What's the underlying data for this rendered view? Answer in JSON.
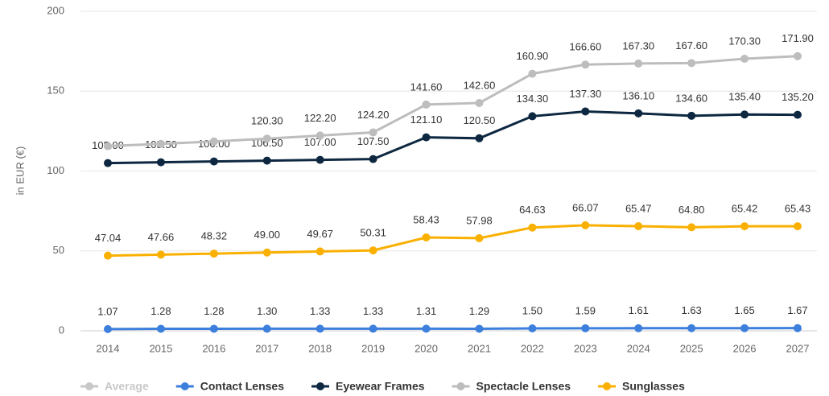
{
  "chart_data": {
    "type": "line",
    "y_label": "in EUR (€)",
    "x": [
      "2014",
      "2015",
      "2016",
      "2017",
      "2018",
      "2019",
      "2020",
      "2021",
      "2022",
      "2023",
      "2024",
      "2025",
      "2026",
      "2027"
    ],
    "ylim": [
      0,
      200
    ],
    "yticks": [
      0,
      50,
      100,
      150,
      200
    ],
    "grid": true,
    "legend": "bottom-left",
    "series": [
      {
        "name": "Average",
        "color": "#c8c8c8",
        "hidden": true,
        "values": [
          null,
          null,
          null,
          null,
          null,
          null,
          null,
          null,
          null,
          null,
          null,
          null,
          null,
          null
        ]
      },
      {
        "name": "Contact Lenses",
        "color": "#3d7fdc",
        "values": [
          1.07,
          1.28,
          1.28,
          1.3,
          1.33,
          1.33,
          1.31,
          1.29,
          1.5,
          1.59,
          1.61,
          1.63,
          1.65,
          1.67
        ],
        "value_labels": [
          "1.07",
          "1.28",
          "1.28",
          "1.30",
          "1.33",
          "1.33",
          "1.31",
          "1.29",
          "1.50",
          "1.59",
          "1.61",
          "1.63",
          "1.65",
          "1.67"
        ]
      },
      {
        "name": "Eyewear Frames",
        "color": "#0e2841",
        "values": [
          105,
          105.5,
          106,
          106.5,
          107,
          107.5,
          121.1,
          120.5,
          134.3,
          137.3,
          136.1,
          134.6,
          135.4,
          135.2
        ],
        "value_labels": [
          "105.00",
          "105.50",
          "106.00",
          "106.50",
          "107.00",
          "107.50",
          "121.10",
          "120.50",
          "134.30",
          "137.30",
          "136.10",
          "134.60",
          "135.40",
          "135.20"
        ]
      },
      {
        "name": "Spectacle Lenses",
        "color": "#bdbdbd",
        "values": [
          115.6,
          117,
          118.5,
          120.3,
          122.2,
          124.2,
          141.6,
          142.6,
          160.9,
          166.6,
          167.3,
          167.6,
          170.3,
          171.9
        ],
        "value_labels": [
          null,
          null,
          null,
          "120.30",
          "122.20",
          "124.20",
          "141.60",
          "142.60",
          "160.90",
          "166.60",
          "167.30",
          "167.60",
          "170.30",
          "171.90"
        ]
      },
      {
        "name": "Sunglasses",
        "color": "#f9b000",
        "values": [
          47.04,
          47.66,
          48.32,
          49,
          49.67,
          50.31,
          58.43,
          57.98,
          64.63,
          66.07,
          65.47,
          64.8,
          65.42,
          65.43
        ],
        "value_labels": [
          "47.04",
          "47.66",
          "48.32",
          "49.00",
          "49.67",
          "50.31",
          "58.43",
          "57.98",
          "64.63",
          "66.07",
          "65.47",
          "64.80",
          "65.42",
          "65.43"
        ]
      }
    ]
  }
}
